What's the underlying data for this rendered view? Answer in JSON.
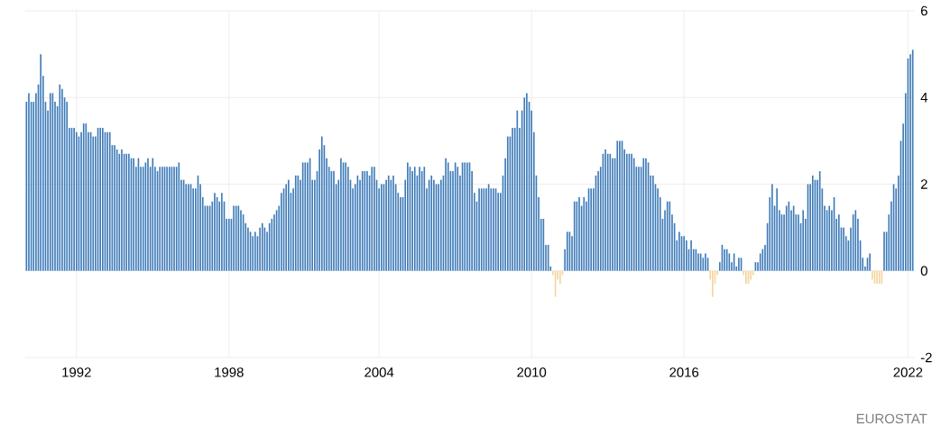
{
  "chart_data": {
    "type": "bar",
    "grid": true,
    "ylim": [
      -2,
      6
    ],
    "yticks": [
      -2,
      0,
      2,
      4,
      6
    ],
    "annotations": [
      "EUROSTAT"
    ],
    "categories": [
      null,
      null,
      null,
      null,
      null,
      null,
      null,
      null,
      null,
      null,
      null,
      null,
      null,
      null,
      null,
      null,
      null,
      null,
      null,
      null,
      null,
      "1992",
      null,
      null,
      null,
      null,
      null,
      null,
      null,
      null,
      null,
      null,
      null,
      null,
      null,
      null,
      null,
      null,
      null,
      null,
      null,
      null,
      null,
      null,
      null,
      null,
      null,
      null,
      null,
      null,
      null,
      null,
      null,
      null,
      null,
      null,
      null,
      null,
      null,
      null,
      null,
      null,
      null,
      null,
      null,
      null,
      null,
      null,
      null,
      null,
      null,
      null,
      null,
      null,
      null,
      null,
      null,
      null,
      null,
      null,
      null,
      null,
      null,
      null,
      null,
      "1998",
      null,
      null,
      null,
      null,
      null,
      null,
      null,
      null,
      null,
      null,
      null,
      null,
      null,
      null,
      null,
      null,
      null,
      null,
      null,
      null,
      null,
      null,
      null,
      null,
      null,
      null,
      null,
      null,
      null,
      null,
      null,
      null,
      null,
      null,
      null,
      null,
      null,
      null,
      null,
      null,
      null,
      null,
      null,
      null,
      null,
      null,
      null,
      null,
      null,
      null,
      null,
      null,
      null,
      null,
      null,
      null,
      null,
      null,
      null,
      null,
      null,
      null,
      "2004",
      null,
      null,
      null,
      null,
      null,
      null,
      null,
      null,
      null,
      null,
      null,
      null,
      null,
      null,
      null,
      null,
      null,
      null,
      null,
      null,
      null,
      null,
      null,
      null,
      null,
      null,
      null,
      null,
      null,
      null,
      null,
      null,
      null,
      null,
      null,
      null,
      null,
      null,
      null,
      null,
      null,
      null,
      null,
      null,
      null,
      null,
      null,
      null,
      null,
      null,
      null,
      null,
      null,
      null,
      null,
      null,
      null,
      null,
      null,
      null,
      null,
      null,
      null,
      "2010",
      null,
      null,
      null,
      null,
      null,
      null,
      null,
      null,
      null,
      null,
      null,
      null,
      null,
      null,
      null,
      null,
      null,
      null,
      null,
      null,
      null,
      null,
      null,
      null,
      null,
      null,
      null,
      null,
      null,
      null,
      null,
      null,
      null,
      null,
      null,
      null,
      null,
      null,
      null,
      null,
      null,
      null,
      null,
      null,
      null,
      null,
      null,
      null,
      null,
      null,
      null,
      null,
      null,
      null,
      null,
      null,
      null,
      null,
      null,
      null,
      null,
      null,
      null,
      "2016",
      null,
      null,
      null,
      null,
      null,
      null,
      null,
      null,
      null,
      null,
      null,
      null,
      null,
      null,
      null,
      null,
      null,
      null,
      null,
      null,
      null,
      null,
      null,
      null,
      null,
      null,
      null,
      null,
      null,
      null,
      null,
      null,
      null,
      null,
      null,
      null,
      null,
      null,
      null,
      null,
      null,
      null,
      null,
      null,
      null,
      null,
      null,
      null,
      null,
      null,
      null,
      null,
      null,
      null,
      null,
      null,
      null,
      null,
      null,
      null,
      null,
      null,
      null,
      null,
      null,
      null,
      null,
      null,
      null,
      null,
      null,
      null,
      null,
      null,
      null,
      null,
      null,
      null,
      null,
      null,
      null,
      null,
      null,
      null,
      null,
      null,
      null,
      null,
      null,
      null,
      null,
      null,
      null,
      "2022",
      null,
      null
    ],
    "values": [
      3.9,
      4.1,
      3.9,
      3.9,
      4.1,
      4.3,
      5.0,
      4.5,
      3.9,
      3.7,
      4.1,
      4.1,
      3.9,
      3.8,
      4.3,
      4.2,
      4.0,
      3.9,
      3.3,
      3.3,
      3.3,
      3.2,
      3.1,
      3.2,
      3.4,
      3.4,
      3.2,
      3.2,
      3.1,
      3.1,
      3.3,
      3.3,
      3.3,
      3.2,
      3.2,
      3.2,
      2.9,
      2.9,
      2.8,
      2.7,
      2.8,
      2.7,
      2.7,
      2.7,
      2.6,
      2.6,
      2.4,
      2.6,
      2.4,
      2.4,
      2.5,
      2.6,
      2.4,
      2.6,
      2.4,
      2.3,
      2.4,
      2.4,
      2.4,
      2.4,
      2.4,
      2.4,
      2.4,
      2.4,
      2.5,
      2.1,
      2.1,
      2.0,
      2.0,
      2.0,
      1.9,
      1.9,
      2.2,
      2.0,
      1.7,
      1.5,
      1.5,
      1.5,
      1.6,
      1.8,
      1.7,
      1.6,
      1.8,
      1.6,
      1.2,
      1.2,
      1.2,
      1.5,
      1.5,
      1.5,
      1.4,
      1.3,
      1.1,
      1.0,
      0.9,
      0.8,
      0.9,
      0.8,
      1.0,
      1.1,
      1.0,
      0.9,
      1.1,
      1.2,
      1.3,
      1.4,
      1.5,
      1.8,
      1.9,
      2.0,
      2.1,
      1.8,
      1.9,
      2.2,
      2.2,
      2.1,
      2.5,
      2.5,
      2.5,
      2.6,
      2.1,
      2.1,
      2.3,
      2.8,
      3.1,
      2.9,
      2.6,
      2.4,
      2.3,
      2.3,
      2.0,
      2.1,
      2.6,
      2.5,
      2.5,
      2.4,
      2.1,
      1.9,
      2.0,
      2.2,
      2.1,
      2.3,
      2.3,
      2.3,
      2.2,
      2.4,
      2.4,
      2.1,
      1.9,
      2.0,
      2.0,
      2.1,
      2.2,
      2.1,
      2.2,
      2.0,
      1.8,
      1.7,
      1.7,
      2.1,
      2.5,
      2.4,
      2.3,
      2.4,
      2.2,
      2.4,
      2.3,
      2.4,
      1.9,
      2.1,
      2.2,
      2.1,
      2.0,
      2.0,
      2.1,
      2.2,
      2.6,
      2.5,
      2.3,
      2.3,
      2.5,
      2.4,
      2.2,
      2.5,
      2.5,
      2.5,
      2.5,
      2.3,
      1.8,
      1.6,
      1.9,
      1.9,
      1.9,
      1.9,
      2.0,
      1.9,
      1.9,
      1.9,
      1.8,
      1.8,
      2.2,
      2.6,
      3.1,
      3.1,
      3.3,
      3.3,
      3.7,
      3.3,
      3.7,
      4.0,
      4.1,
      3.9,
      3.7,
      3.2,
      2.2,
      1.7,
      1.2,
      1.2,
      0.6,
      0.6,
      0.1,
      -0.1,
      -0.6,
      -0.2,
      -0.3,
      -0.1,
      0.5,
      0.9,
      0.9,
      0.8,
      1.6,
      1.6,
      1.7,
      1.5,
      1.7,
      1.6,
      1.9,
      1.9,
      1.9,
      2.2,
      2.3,
      2.4,
      2.7,
      2.8,
      2.7,
      2.7,
      2.6,
      2.6,
      3.0,
      3.0,
      3.0,
      2.8,
      2.7,
      2.7,
      2.7,
      2.6,
      2.4,
      2.4,
      2.4,
      2.6,
      2.6,
      2.5,
      2.2,
      2.2,
      2.0,
      1.9,
      1.7,
      1.2,
      1.4,
      1.6,
      1.6,
      1.3,
      1.1,
      0.7,
      0.9,
      0.8,
      0.8,
      0.7,
      0.5,
      0.7,
      0.5,
      0.5,
      0.4,
      0.4,
      0.3,
      0.4,
      0.3,
      -0.2,
      -0.6,
      -0.3,
      -0.1,
      0.2,
      0.6,
      0.5,
      0.5,
      0.4,
      0.2,
      0.4,
      0.1,
      0.3,
      0.3,
      -0.1,
      -0.3,
      -0.3,
      -0.2,
      -0.1,
      0.2,
      0.2,
      0.4,
      0.5,
      0.6,
      1.1,
      1.7,
      2.0,
      1.5,
      1.9,
      1.4,
      1.3,
      1.3,
      1.5,
      1.6,
      1.4,
      1.5,
      1.3,
      1.3,
      1.1,
      1.4,
      1.2,
      2.0,
      2.0,
      2.2,
      2.1,
      2.1,
      2.3,
      1.9,
      1.5,
      1.4,
      1.5,
      1.4,
      1.7,
      1.2,
      1.3,
      1.0,
      1.0,
      0.8,
      0.7,
      1.0,
      1.3,
      1.4,
      1.2,
      0.7,
      0.3,
      0.1,
      0.3,
      0.4,
      -0.2,
      -0.3,
      -0.3,
      -0.3,
      -0.3,
      0.9,
      0.9,
      1.3,
      1.6,
      2.0,
      1.9,
      2.2,
      3.0,
      3.4,
      4.1,
      4.9,
      5.0,
      5.1
    ],
    "colors": [
      "#3d7ab8",
      "#3d7ab8",
      "#3d7ab8",
      "#3d7ab8",
      "#3d7ab8",
      "#3d7ab8",
      "#3d7ab8",
      "#3d7ab8",
      "#3d7ab8",
      "#3d7ab8",
      "#3d7ab8",
      "#3d7ab8",
      "#3d7ab8",
      "#3d7ab8",
      "#3d7ab8",
      "#3d7ab8",
      "#3d7ab8",
      "#3d7ab8",
      "#3d7ab8",
      "#3d7ab8",
      "#3d7ab8",
      "#3d7ab8",
      "#3d7ab8",
      "#3d7ab8",
      "#3d7ab8",
      "#3d7ab8",
      "#3d7ab8",
      "#3d7ab8",
      "#3d7ab8",
      "#3d7ab8",
      "#3d7ab8",
      "#3d7ab8",
      "#3d7ab8",
      "#3d7ab8",
      "#3d7ab8",
      "#3d7ab8",
      "#3d7ab8",
      "#3d7ab8",
      "#3d7ab8",
      "#3d7ab8",
      "#3d7ab8",
      "#3d7ab8",
      "#3d7ab8",
      "#3d7ab8",
      "#3d7ab8",
      "#3d7ab8",
      "#3d7ab8",
      "#3d7ab8",
      "#3d7ab8",
      "#3d7ab8",
      "#3d7ab8",
      "#3d7ab8",
      "#3d7ab8",
      "#3d7ab8",
      "#3d7ab8",
      "#3d7ab8",
      "#3d7ab8",
      "#3d7ab8",
      "#3d7ab8",
      "#3d7ab8",
      "#3d7ab8",
      "#3d7ab8",
      "#3d7ab8",
      "#3d7ab8",
      "#3d7ab8",
      "#3d7ab8",
      "#3d7ab8",
      "#3d7ab8",
      "#3d7ab8",
      "#3d7ab8",
      "#3d7ab8",
      "#3d7ab8",
      "#3d7ab8",
      "#3d7ab8",
      "#3d7ab8",
      "#3d7ab8",
      "#3d7ab8",
      "#3d7ab8",
      "#3d7ab8",
      "#3d7ab8",
      "#3d7ab8",
      "#3d7ab8",
      "#3d7ab8",
      "#3d7ab8",
      "#3d7ab8",
      "#3d7ab8",
      "#3d7ab8",
      "#3d7ab8",
      "#3d7ab8",
      "#3d7ab8",
      "#3d7ab8",
      "#3d7ab8",
      "#3d7ab8",
      "#3d7ab8",
      "#3d7ab8",
      "#3d7ab8",
      "#3d7ab8",
      "#3d7ab8",
      "#3d7ab8",
      "#3d7ab8",
      "#3d7ab8",
      "#3d7ab8",
      "#3d7ab8",
      "#3d7ab8",
      "#3d7ab8",
      "#3d7ab8",
      "#3d7ab8",
      "#3d7ab8",
      "#3d7ab8",
      "#3d7ab8",
      "#3d7ab8",
      "#3d7ab8",
      "#3d7ab8",
      "#3d7ab8",
      "#3d7ab8",
      "#3d7ab8",
      "#3d7ab8",
      "#3d7ab8",
      "#3d7ab8",
      "#3d7ab8",
      "#3d7ab8",
      "#3d7ab8",
      "#3d7ab8",
      "#3d7ab8",
      "#3d7ab8",
      "#3d7ab8",
      "#3d7ab8",
      "#3d7ab8",
      "#3d7ab8",
      "#3d7ab8",
      "#3d7ab8",
      "#3d7ab8",
      "#3d7ab8",
      "#3d7ab8",
      "#3d7ab8",
      "#3d7ab8",
      "#3d7ab8",
      "#3d7ab8",
      "#3d7ab8",
      "#3d7ab8",
      "#3d7ab8",
      "#3d7ab8",
      "#3d7ab8",
      "#3d7ab8",
      "#3d7ab8",
      "#3d7ab8",
      "#3d7ab8",
      "#3d7ab8",
      "#3d7ab8",
      "#3d7ab8",
      "#3d7ab8",
      "#3d7ab8",
      "#3d7ab8",
      "#3d7ab8",
      "#3d7ab8",
      "#3d7ab8",
      "#3d7ab8",
      "#3d7ab8",
      "#3d7ab8",
      "#3d7ab8",
      "#3d7ab8",
      "#3d7ab8",
      "#3d7ab8",
      "#3d7ab8",
      "#3d7ab8",
      "#3d7ab8",
      "#3d7ab8",
      "#3d7ab8",
      "#3d7ab8",
      "#3d7ab8",
      "#3d7ab8",
      "#3d7ab8",
      "#3d7ab8",
      "#3d7ab8",
      "#3d7ab8",
      "#3d7ab8",
      "#3d7ab8",
      "#3d7ab8",
      "#3d7ab8",
      "#3d7ab8",
      "#3d7ab8",
      "#3d7ab8",
      "#3d7ab8",
      "#3d7ab8",
      "#3d7ab8",
      "#3d7ab8",
      "#3d7ab8",
      "#3d7ab8",
      "#3d7ab8",
      "#3d7ab8",
      "#3d7ab8",
      "#3d7ab8",
      "#3d7ab8",
      "#3d7ab8",
      "#3d7ab8",
      "#3d7ab8",
      "#3d7ab8",
      "#3d7ab8",
      "#3d7ab8",
      "#3d7ab8",
      "#3d7ab8",
      "#3d7ab8",
      "#3d7ab8",
      "#3d7ab8",
      "#3d7ab8",
      "#3d7ab8",
      "#3d7ab8",
      "#3d7ab8",
      "#3d7ab8",
      "#3d7ab8",
      "#3d7ab8",
      "#3d7ab8",
      "#3d7ab8",
      "#3d7ab8",
      "#3d7ab8",
      "#3d7ab8",
      "#3d7ab8",
      "#3d7ab8",
      "#3d7ab8",
      "#3d7ab8",
      "#3d7ab8",
      "#f5d49c",
      "#f5d49c",
      "#f5d49c",
      "#f5d49c",
      "#f5d49c",
      "#3d7ab8",
      "#3d7ab8",
      "#3d7ab8",
      "#3d7ab8",
      "#3d7ab8",
      "#3d7ab8",
      "#3d7ab8",
      "#3d7ab8",
      "#3d7ab8",
      "#3d7ab8",
      "#3d7ab8",
      "#3d7ab8",
      "#3d7ab8",
      "#3d7ab8",
      "#3d7ab8",
      "#3d7ab8",
      "#3d7ab8",
      "#3d7ab8",
      "#3d7ab8",
      "#3d7ab8",
      "#3d7ab8",
      "#3d7ab8",
      "#3d7ab8",
      "#3d7ab8",
      "#3d7ab8",
      "#3d7ab8",
      "#3d7ab8",
      "#3d7ab8",
      "#3d7ab8",
      "#3d7ab8",
      "#3d7ab8",
      "#3d7ab8",
      "#3d7ab8",
      "#3d7ab8",
      "#3d7ab8",
      "#3d7ab8",
      "#3d7ab8",
      "#3d7ab8",
      "#3d7ab8",
      "#3d7ab8",
      "#3d7ab8",
      "#3d7ab8",
      "#3d7ab8",
      "#3d7ab8",
      "#3d7ab8",
      "#3d7ab8",
      "#3d7ab8",
      "#3d7ab8",
      "#3d7ab8",
      "#3d7ab8",
      "#3d7ab8",
      "#3d7ab8",
      "#3d7ab8",
      "#3d7ab8",
      "#3d7ab8",
      "#3d7ab8",
      "#3d7ab8",
      "#3d7ab8",
      "#3d7ab8",
      "#3d7ab8",
      "#3d7ab8",
      "#f5d49c",
      "#f5d49c",
      "#f5d49c",
      "#f5d49c",
      "#3d7ab8",
      "#3d7ab8",
      "#3d7ab8",
      "#3d7ab8",
      "#3d7ab8",
      "#3d7ab8",
      "#3d7ab8",
      "#3d7ab8",
      "#3d7ab8",
      "#3d7ab8",
      "#f5d49c",
      "#f5d49c",
      "#f5d49c",
      "#f5d49c",
      "#f5d49c",
      "#3d7ab8",
      "#3d7ab8",
      "#3d7ab8",
      "#3d7ab8",
      "#3d7ab8",
      "#3d7ab8",
      "#3d7ab8",
      "#3d7ab8",
      "#3d7ab8",
      "#3d7ab8",
      "#3d7ab8",
      "#3d7ab8",
      "#3d7ab8",
      "#3d7ab8",
      "#3d7ab8",
      "#3d7ab8",
      "#3d7ab8",
      "#3d7ab8",
      "#3d7ab8",
      "#3d7ab8",
      "#3d7ab8",
      "#3d7ab8",
      "#3d7ab8",
      "#3d7ab8",
      "#3d7ab8",
      "#3d7ab8",
      "#3d7ab8",
      "#3d7ab8",
      "#3d7ab8",
      "#3d7ab8",
      "#3d7ab8",
      "#3d7ab8",
      "#3d7ab8",
      "#3d7ab8",
      "#3d7ab8",
      "#3d7ab8",
      "#3d7ab8",
      "#3d7ab8",
      "#3d7ab8",
      "#3d7ab8",
      "#3d7ab8",
      "#3d7ab8",
      "#3d7ab8",
      "#3d7ab8",
      "#3d7ab8",
      "#3d7ab8",
      "#3d7ab8",
      "#3d7ab8",
      "#3d7ab8",
      "#f5d49c",
      "#f5d49c",
      "#f5d49c",
      "#f5d49c",
      "#f5d49c",
      "#3d7ab8",
      "#3d7ab8",
      "#3d7ab8",
      "#3d7ab8",
      "#3d7ab8",
      "#3d7ab8",
      "#3d7ab8",
      "#3d7ab8",
      "#3d7ab8",
      "#3d7ab8",
      "#3d7ab8",
      "#3d7ab8",
      "#3d7ab8"
    ]
  }
}
